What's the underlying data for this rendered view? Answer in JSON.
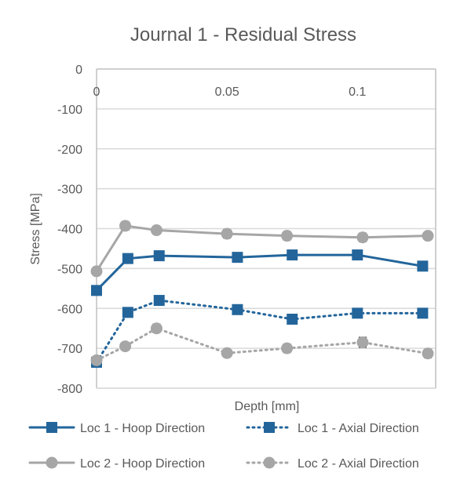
{
  "chart_data": {
    "type": "line",
    "title": "Journal 1 - Residual Stress",
    "xlabel": "Depth [mm]",
    "ylabel": "Stress [MPa]",
    "xlim": [
      0,
      0.13
    ],
    "ylim": [
      -800,
      0
    ],
    "x_ticks": [
      0,
      0.05,
      0.1
    ],
    "x_tick_labels": [
      "0",
      "0.05",
      "0.1"
    ],
    "y_ticks": [
      0,
      -100,
      -200,
      -300,
      -400,
      -500,
      -600,
      -700,
      -800
    ],
    "y_tick_labels": [
      "0",
      "-100",
      "-200",
      "-300",
      "-400",
      "-500",
      "-600",
      "-700",
      "-800"
    ],
    "grid": "horizontal",
    "legend_position": "bottom",
    "series": [
      {
        "name": "Loc 1 -  Hoop Direction",
        "color": "#23659b",
        "dash": "solid",
        "marker": "square",
        "x": [
          0,
          0.012,
          0.024,
          0.054,
          0.075,
          0.1,
          0.125
        ],
        "values": [
          -555,
          -475,
          -468,
          -472,
          -466,
          -466,
          -494
        ],
        "errors": [
          6,
          5,
          5,
          5,
          5,
          5,
          5
        ]
      },
      {
        "name": "Loc 1 -  Axial Direction",
        "color": "#23659b",
        "dash": "dotted",
        "marker": "square",
        "x": [
          0,
          0.012,
          0.024,
          0.054,
          0.075,
          0.1,
          0.125
        ],
        "values": [
          -735,
          -610,
          -580,
          -603,
          -627,
          -612,
          -612
        ],
        "errors": [
          6,
          5,
          5,
          5,
          8,
          5,
          5
        ]
      },
      {
        "name": "Loc 2 -  Hoop Direction",
        "color": "#a6a6a6",
        "dash": "solid",
        "marker": "circle",
        "x": [
          0,
          0.011,
          0.023,
          0.05,
          0.073,
          0.102,
          0.127
        ],
        "values": [
          -507,
          -393,
          -404,
          -413,
          -418,
          -422,
          -418
        ],
        "errors": [
          8,
          10,
          9,
          10,
          10,
          10,
          8
        ]
      },
      {
        "name": "Loc 2 -  Axial Direction",
        "color": "#a6a6a6",
        "dash": "dotted",
        "marker": "circle",
        "x": [
          0,
          0.011,
          0.023,
          0.05,
          0.073,
          0.102,
          0.127
        ],
        "values": [
          -730,
          -695,
          -650,
          -712,
          -700,
          -685,
          -713
        ],
        "errors": [
          6,
          8,
          10,
          6,
          10,
          12,
          10
        ]
      }
    ]
  }
}
